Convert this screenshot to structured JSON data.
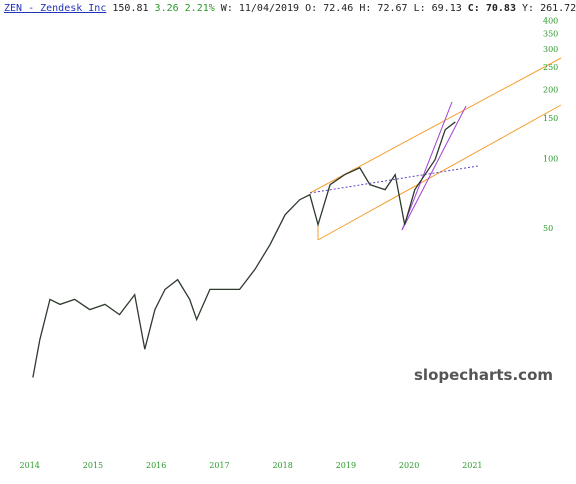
{
  "header": {
    "symbol": "ZEN - Zendesk Inc",
    "price": "150.81",
    "change": "3.26 2.21%",
    "w_label": "W:",
    "date": "11/04/2019",
    "o_label": "O:",
    "open": "72.46",
    "h_label": "H:",
    "high": "72.67",
    "l_label": "L:",
    "low": "69.13",
    "c_label": "C:",
    "close": "70.83",
    "y_label": "Y:",
    "y": "261.72"
  },
  "watermark": "slopecharts.com",
  "chart_data": {
    "type": "line",
    "log_scale": true,
    "color": "#2d3a2d",
    "tick_color": "#2a9a2a",
    "x": [
      2014.05,
      2014.16,
      2014.32,
      2014.48,
      2014.71,
      2014.95,
      2015.19,
      2015.42,
      2015.66,
      2015.82,
      2015.98,
      2016.14,
      2016.34,
      2016.53,
      2016.64,
      2016.85,
      2017.09,
      2017.32,
      2017.56,
      2017.8,
      2018.04,
      2018.27,
      2018.43,
      2018.56,
      2018.75,
      2018.98,
      2019.22,
      2019.38,
      2019.62,
      2019.78,
      2019.93,
      2020.09,
      2020.25,
      2020.41,
      2020.57,
      2020.73
    ],
    "values": [
      11.3,
      16.5,
      24.7,
      23.5,
      24.7,
      22.3,
      23.5,
      21.2,
      25.9,
      15.0,
      22.3,
      27.3,
      30.1,
      24.7,
      20.2,
      27.3,
      27.3,
      27.3,
      33.3,
      42.7,
      57.7,
      67.0,
      70.5,
      52.2,
      77.9,
      86.1,
      92.3,
      77.9,
      74.1,
      86.1,
      52.2,
      74.1,
      86.1,
      100,
      135,
      146
    ],
    "xlim": [
      2013.53,
      2022.07
    ],
    "xticks": [
      2014,
      2015,
      2016,
      2017,
      2018,
      2019,
      2020,
      2021
    ],
    "ylim": [
      5.2,
      495
    ],
    "yticks": [
      400,
      350,
      300,
      250,
      200,
      150,
      100,
      50
    ]
  }
}
